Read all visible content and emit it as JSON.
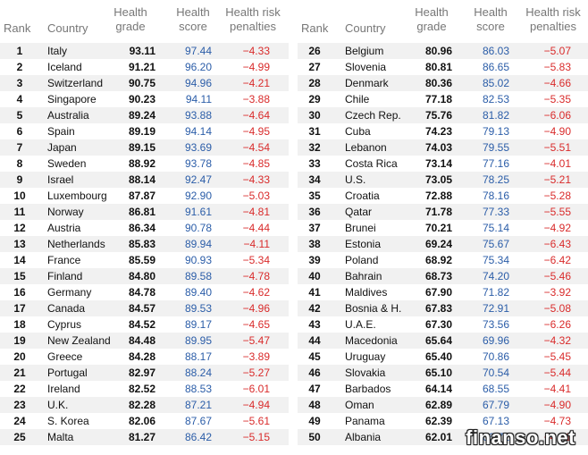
{
  "headers": {
    "rank": "Rank",
    "country": "Country",
    "grade_line1": "Health",
    "grade_line2": "grade",
    "score_line1": "Health",
    "score_line2": "score",
    "pen_line1": "Health risk",
    "pen_line2": "penalties"
  },
  "rows": [
    {
      "rank": "1",
      "country": "Italy",
      "grade": "93.11",
      "score": "97.44",
      "pen": "−4.33"
    },
    {
      "rank": "2",
      "country": "Iceland",
      "grade": "91.21",
      "score": "96.20",
      "pen": "−4.99"
    },
    {
      "rank": "3",
      "country": "Switzerland",
      "grade": "90.75",
      "score": "94.96",
      "pen": "−4.21"
    },
    {
      "rank": "4",
      "country": "Singapore",
      "grade": "90.23",
      "score": "94.11",
      "pen": "−3.88"
    },
    {
      "rank": "5",
      "country": "Australia",
      "grade": "89.24",
      "score": "93.88",
      "pen": "−4.64"
    },
    {
      "rank": "6",
      "country": "Spain",
      "grade": "89.19",
      "score": "94.14",
      "pen": "−4.95"
    },
    {
      "rank": "7",
      "country": "Japan",
      "grade": "89.15",
      "score": "93.69",
      "pen": "−4.54"
    },
    {
      "rank": "8",
      "country": "Sweden",
      "grade": "88.92",
      "score": "93.78",
      "pen": "−4.85"
    },
    {
      "rank": "9",
      "country": "Israel",
      "grade": "88.14",
      "score": "92.47",
      "pen": "−4.33"
    },
    {
      "rank": "10",
      "country": "Luxembourg",
      "grade": "87.87",
      "score": "92.90",
      "pen": "−5.03"
    },
    {
      "rank": "11",
      "country": "Norway",
      "grade": "86.81",
      "score": "91.61",
      "pen": "−4.81"
    },
    {
      "rank": "12",
      "country": "Austria",
      "grade": "86.34",
      "score": "90.78",
      "pen": "−4.44"
    },
    {
      "rank": "13",
      "country": "Netherlands",
      "grade": "85.83",
      "score": "89.94",
      "pen": "−4.11"
    },
    {
      "rank": "14",
      "country": "France",
      "grade": "85.59",
      "score": "90.93",
      "pen": "−5.34"
    },
    {
      "rank": "15",
      "country": "Finland",
      "grade": "84.80",
      "score": "89.58",
      "pen": "−4.78"
    },
    {
      "rank": "16",
      "country": "Germany",
      "grade": "84.78",
      "score": "89.40",
      "pen": "−4.62"
    },
    {
      "rank": "17",
      "country": "Canada",
      "grade": "84.57",
      "score": "89.53",
      "pen": "−4.96"
    },
    {
      "rank": "18",
      "country": "Cyprus",
      "grade": "84.52",
      "score": "89.17",
      "pen": "−4.65"
    },
    {
      "rank": "19",
      "country": "New Zealand",
      "grade": "84.48",
      "score": "89.95",
      "pen": "−5.47"
    },
    {
      "rank": "20",
      "country": "Greece",
      "grade": "84.28",
      "score": "88.17",
      "pen": "−3.89"
    },
    {
      "rank": "21",
      "country": "Portugal",
      "grade": "82.97",
      "score": "88.24",
      "pen": "−5.27"
    },
    {
      "rank": "22",
      "country": "Ireland",
      "grade": "82.52",
      "score": "88.53",
      "pen": "−6.01"
    },
    {
      "rank": "23",
      "country": "U.K.",
      "grade": "82.28",
      "score": "87.21",
      "pen": "−4.94"
    },
    {
      "rank": "24",
      "country": "S. Korea",
      "grade": "82.06",
      "score": "87.67",
      "pen": "−5.61"
    },
    {
      "rank": "25",
      "country": "Malta",
      "grade": "81.27",
      "score": "86.42",
      "pen": "−5.15"
    },
    {
      "rank": "26",
      "country": "Belgium",
      "grade": "80.96",
      "score": "86.03",
      "pen": "−5.07"
    },
    {
      "rank": "27",
      "country": "Slovenia",
      "grade": "80.81",
      "score": "86.65",
      "pen": "−5.83"
    },
    {
      "rank": "28",
      "country": "Denmark",
      "grade": "80.36",
      "score": "85.02",
      "pen": "−4.66"
    },
    {
      "rank": "29",
      "country": "Chile",
      "grade": "77.18",
      "score": "82.53",
      "pen": "−5.35"
    },
    {
      "rank": "30",
      "country": "Czech Rep.",
      "grade": "75.76",
      "score": "81.82",
      "pen": "−6.06"
    },
    {
      "rank": "31",
      "country": "Cuba",
      "grade": "74.23",
      "score": "79.13",
      "pen": "−4.90"
    },
    {
      "rank": "32",
      "country": "Lebanon",
      "grade": "74.03",
      "score": "79.55",
      "pen": "−5.51"
    },
    {
      "rank": "33",
      "country": "Costa Rica",
      "grade": "73.14",
      "score": "77.16",
      "pen": "−4.01"
    },
    {
      "rank": "34",
      "country": "U.S.",
      "grade": "73.05",
      "score": "78.25",
      "pen": "−5.21"
    },
    {
      "rank": "35",
      "country": "Croatia",
      "grade": "72.88",
      "score": "78.16",
      "pen": "−5.28"
    },
    {
      "rank": "36",
      "country": "Qatar",
      "grade": "71.78",
      "score": "77.33",
      "pen": "−5.55"
    },
    {
      "rank": "37",
      "country": "Brunei",
      "grade": "70.21",
      "score": "75.14",
      "pen": "−4.92"
    },
    {
      "rank": "38",
      "country": "Estonia",
      "grade": "69.24",
      "score": "75.67",
      "pen": "−6.43"
    },
    {
      "rank": "39",
      "country": "Poland",
      "grade": "68.92",
      "score": "75.34",
      "pen": "−6.42"
    },
    {
      "rank": "40",
      "country": "Bahrain",
      "grade": "68.73",
      "score": "74.20",
      "pen": "−5.46"
    },
    {
      "rank": "41",
      "country": "Maldives",
      "grade": "67.90",
      "score": "71.82",
      "pen": "−3.92"
    },
    {
      "rank": "42",
      "country": "Bosnia & H.",
      "grade": "67.83",
      "score": "72.91",
      "pen": "−5.08"
    },
    {
      "rank": "43",
      "country": "U.A.E.",
      "grade": "67.30",
      "score": "73.56",
      "pen": "−6.26"
    },
    {
      "rank": "44",
      "country": "Macedonia",
      "grade": "65.64",
      "score": "69.96",
      "pen": "−4.32"
    },
    {
      "rank": "45",
      "country": "Uruguay",
      "grade": "65.40",
      "score": "70.86",
      "pen": "−5.45"
    },
    {
      "rank": "46",
      "country": "Slovakia",
      "grade": "65.10",
      "score": "70.54",
      "pen": "−5.44"
    },
    {
      "rank": "47",
      "country": "Barbados",
      "grade": "64.14",
      "score": "68.55",
      "pen": "−4.41"
    },
    {
      "rank": "48",
      "country": "Oman",
      "grade": "62.89",
      "score": "67.79",
      "pen": "−4.90"
    },
    {
      "rank": "49",
      "country": "Panama",
      "grade": "62.39",
      "score": "67.13",
      "pen": "−4.73"
    },
    {
      "rank": "50",
      "country": "Albania",
      "grade": "62.01",
      "score": "66.72",
      "pen": "−4.71"
    }
  ],
  "watermark": "finanso.net"
}
